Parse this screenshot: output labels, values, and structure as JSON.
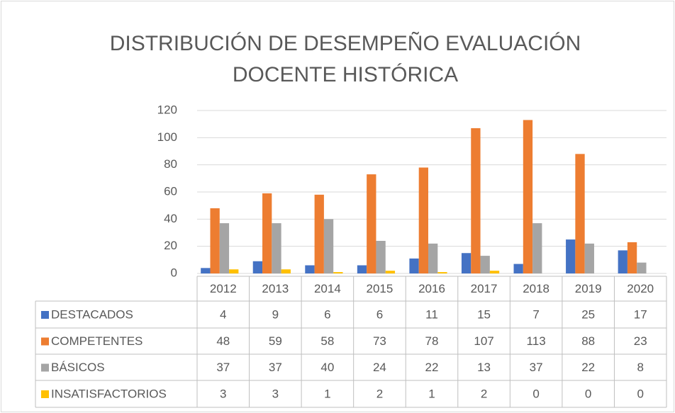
{
  "chart_data": {
    "type": "bar",
    "title": "DISTRIBUCIÓN DE DESEMPEÑO EVALUACIÓN DOCENTE HISTÓRICA",
    "categories": [
      "2012",
      "2013",
      "2014",
      "2015",
      "2016",
      "2017",
      "2018",
      "2019",
      "2020"
    ],
    "series": [
      {
        "name": "DESTACADOS",
        "color": "#4472c4",
        "values": [
          4,
          9,
          6,
          6,
          11,
          15,
          7,
          25,
          17
        ]
      },
      {
        "name": "COMPETENTES",
        "color": "#ed7d31",
        "values": [
          48,
          59,
          58,
          73,
          78,
          107,
          113,
          88,
          23
        ]
      },
      {
        "name": "BÁSICOS",
        "color": "#a5a5a5",
        "values": [
          37,
          37,
          40,
          24,
          22,
          13,
          37,
          22,
          8
        ]
      },
      {
        "name": "INSATISFACTORIOS",
        "color": "#ffc000",
        "values": [
          3,
          3,
          1,
          2,
          1,
          2,
          0,
          0,
          0
        ]
      }
    ],
    "ylim": [
      0,
      120
    ],
    "yticks": [
      0,
      20,
      40,
      60,
      80,
      100,
      120
    ],
    "grid": true
  }
}
